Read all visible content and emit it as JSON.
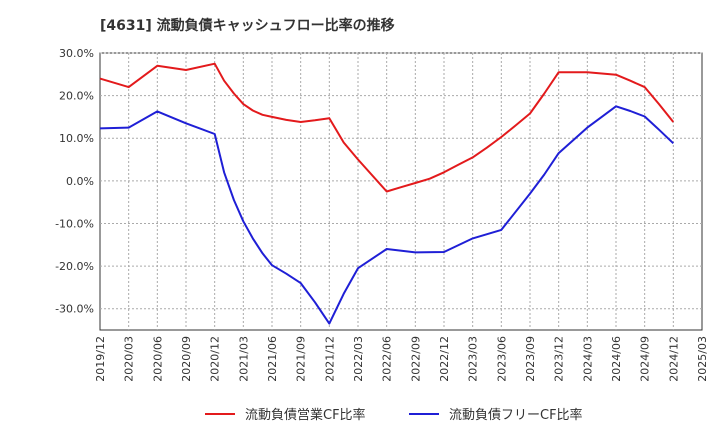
{
  "chart_data": {
    "type": "line",
    "title": "[4631]  流動負債キャッシュフロー比率の推移",
    "xlabel": "",
    "ylabel": "",
    "ylim": [
      -35,
      30
    ],
    "yticks": [
      30,
      20,
      10,
      0,
      -10,
      -20,
      -30
    ],
    "ytick_labels": [
      "30.0%",
      "20.0%",
      "10.0%",
      "0.0%",
      "-10.0%",
      "-20.0%",
      "-30.0%"
    ],
    "categories": [
      "2019/12",
      "2020/03",
      "2020/06",
      "2020/09",
      "2020/12",
      "2021/03",
      "2021/06",
      "2021/09",
      "2021/12",
      "2022/03",
      "2022/06",
      "2022/09",
      "2022/12",
      "2023/03",
      "2023/06",
      "2023/09",
      "2023/12",
      "2024/03",
      "2024/06",
      "2024/09",
      "2024/12",
      "2025/03"
    ],
    "grid": true,
    "legend_position": "bottom",
    "series": [
      {
        "name": "流動負債営業CF比率",
        "color": "#e31a1c",
        "x": [
          0,
          1,
          2,
          3,
          4,
          4.33,
          4.67,
          5,
          5.33,
          5.67,
          6,
          6.5,
          7,
          7.5,
          8,
          8.5,
          9,
          10,
          10.5,
          11,
          11.5,
          12,
          12.5,
          13,
          13.5,
          14,
          14.5,
          15,
          15.5,
          16,
          17,
          17.5,
          18,
          18.5,
          19,
          19.5,
          20
        ],
        "values": [
          24,
          22,
          27,
          26,
          27.5,
          23.5,
          20.5,
          18,
          16.5,
          15.5,
          15,
          14.3,
          13.8,
          14.2,
          14.7,
          9,
          5,
          -2.5,
          -1.5,
          -0.5,
          0.5,
          2,
          3.8,
          5.5,
          7.8,
          10.3,
          13,
          15.8,
          20.5,
          25.5,
          25.5,
          25.2,
          24.9,
          23.5,
          22,
          18,
          13.8
        ]
      },
      {
        "name": "流動負債フリーCF比率",
        "color": "#1f1fd6",
        "x": [
          0,
          1,
          2,
          3,
          4,
          4.33,
          4.67,
          5,
          5.33,
          5.67,
          6,
          6.5,
          7,
          7.5,
          8,
          8.5,
          9,
          10,
          11,
          12,
          13,
          14,
          15,
          15.5,
          16,
          17,
          17.5,
          18,
          18.5,
          19,
          19.5,
          20
        ],
        "values": [
          12.3,
          12.5,
          16.3,
          13.5,
          11,
          2,
          -4.5,
          -9.5,
          -13.5,
          -17,
          -19.8,
          -21.8,
          -24,
          -28.5,
          -33.5,
          -26.5,
          -20.5,
          -16,
          -16.8,
          -16.7,
          -13.5,
          -11.5,
          -3,
          1.5,
          6.5,
          12.5,
          15,
          17.5,
          16.4,
          15.1,
          12,
          8.8
        ]
      }
    ]
  }
}
